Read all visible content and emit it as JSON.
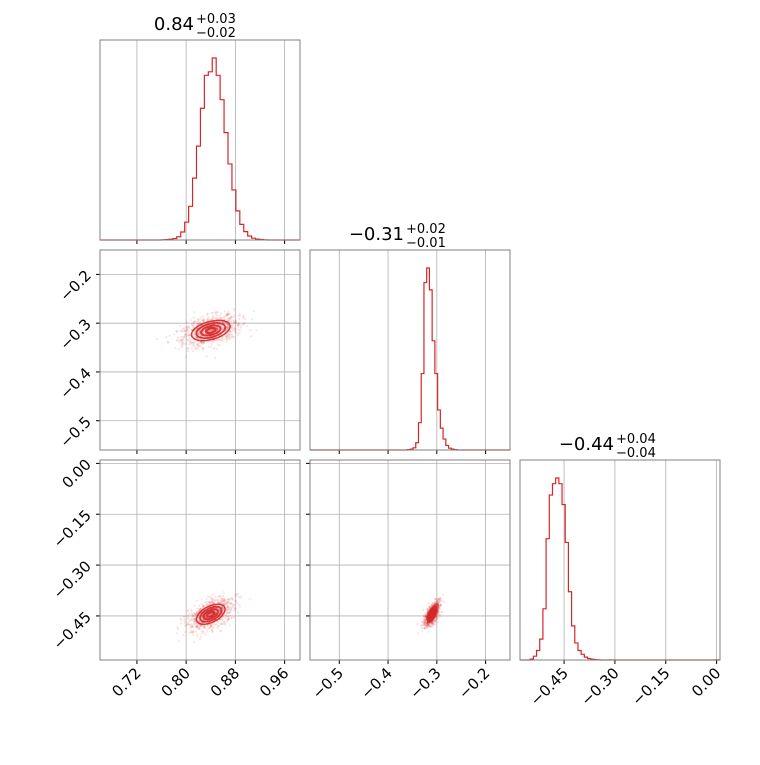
{
  "figure": {
    "accent_color": "#d62728",
    "panel_frame_color": "#808080",
    "grid_color": "#b0b0b0"
  },
  "chart_data": [
    {
      "type": "histogram",
      "panel": "diag-1",
      "title": {
        "main": "0.84",
        "sup": "+0.03",
        "sub": "−0.02"
      },
      "xlim": [
        0.66,
        0.985
      ],
      "bins": {
        "start": 0.7592,
        "width": 0.0064,
        "counts": [
          1,
          2,
          4,
          8,
          18,
          44,
          98,
          185,
          340,
          516,
          724,
          905,
          924,
          1000,
          905,
          771,
          590,
          418,
          275,
          160,
          86,
          46,
          22,
          10,
          5,
          3,
          1,
          0
        ]
      },
      "xticks": [
        0.72,
        0.8,
        0.88,
        0.96
      ],
      "xtick_labels": [
        "0.72",
        "0.80",
        "0.88",
        "0.96"
      ]
    },
    {
      "type": "histogram",
      "panel": "diag-2",
      "title": {
        "main": "−0.31",
        "sup": "+0.02",
        "sub": "−0.01"
      },
      "xlim": [
        -0.56,
        -0.15
      ],
      "bins": {
        "start": -0.36,
        "width": 0.0056,
        "counts": [
          2,
          5,
          12,
          40,
          150,
          420,
          920,
          1000,
          880,
          600,
          420,
          220,
          120,
          60,
          25,
          10,
          5,
          2
        ]
      },
      "xticks": [
        -0.5,
        -0.4,
        -0.3,
        -0.2
      ],
      "xtick_labels": [
        "−0.5",
        "−0.4",
        "−0.3",
        "−0.2"
      ]
    },
    {
      "type": "histogram",
      "panel": "diag-3",
      "title": {
        "main": "−0.44",
        "sup": "+0.04",
        "sub": "−0.04"
      },
      "xlim": [
        -0.58,
        0.01
      ],
      "bins": {
        "start": -0.55,
        "width": 0.0094,
        "counts": [
          5,
          20,
          50,
          110,
          270,
          640,
          870,
          930,
          960,
          930,
          820,
          620,
          360,
          180,
          90,
          50,
          30,
          15,
          8,
          4,
          2,
          1,
          0,
          0,
          0,
          1,
          0,
          0,
          0,
          0,
          0,
          0,
          0,
          0,
          0,
          0,
          0,
          0,
          0,
          0,
          0,
          0,
          0,
          0,
          0,
          0,
          0,
          0,
          0,
          0,
          0,
          0,
          0,
          0,
          0,
          0,
          0,
          0,
          1
        ]
      },
      "xticks": [
        -0.45,
        -0.3,
        -0.15,
        0.0
      ],
      "xtick_labels": [
        "−0.45",
        "−0.30",
        "−0.15",
        "0.00"
      ]
    },
    {
      "type": "scatter",
      "panel": "corner-2-1",
      "x_param": 1,
      "y_param": 2,
      "xlim": [
        0.66,
        0.985
      ],
      "ylim": [
        -0.56,
        -0.15
      ],
      "yticks": [
        -0.2,
        -0.3,
        -0.4,
        -0.5
      ],
      "ytick_labels": [
        "−0.2",
        "−0.3",
        "−0.4",
        "−0.5"
      ],
      "center": [
        0.84,
        -0.315
      ],
      "slope": 0.4,
      "spread_along": 0.022,
      "spread_perp": 0.012,
      "contour_radii": [
        0.5,
        1.0,
        1.5,
        2.0
      ]
    },
    {
      "type": "scatter",
      "panel": "corner-3-1",
      "x_param": 1,
      "y_param": 3,
      "xlim": [
        0.66,
        0.985
      ],
      "ylim": [
        -0.58,
        0.01
      ],
      "yticks": [
        0.0,
        -0.15,
        -0.3,
        -0.45
      ],
      "ytick_labels": [
        "0.00",
        "−0.15",
        "−0.30",
        "−0.45"
      ],
      "xticks": [
        0.72,
        0.8,
        0.88,
        0.96
      ],
      "xtick_labels": [
        "0.72",
        "0.80",
        "0.88",
        "0.96"
      ],
      "center": [
        0.84,
        -0.445
      ],
      "slope": 1.6,
      "spread_along": 0.022,
      "spread_perp": 0.012,
      "contour_radii": [
        0.5,
        1.0,
        1.5,
        2.0
      ]
    },
    {
      "type": "scatter",
      "panel": "corner-3-2",
      "x_param": 2,
      "y_param": 3,
      "xlim": [
        -0.56,
        -0.15
      ],
      "ylim": [
        -0.58,
        0.01
      ],
      "xticks": [
        -0.5,
        -0.4,
        -0.3,
        -0.2
      ],
      "xtick_labels": [
        "−0.5",
        "−0.4",
        "−0.3",
        "−0.2"
      ],
      "center": [
        -0.31,
        -0.445
      ],
      "slope": 3.5,
      "spread_along": 0.016,
      "spread_perp": 0.005,
      "contour_radii": [
        0.5,
        1.0,
        1.5,
        2.0
      ]
    }
  ]
}
